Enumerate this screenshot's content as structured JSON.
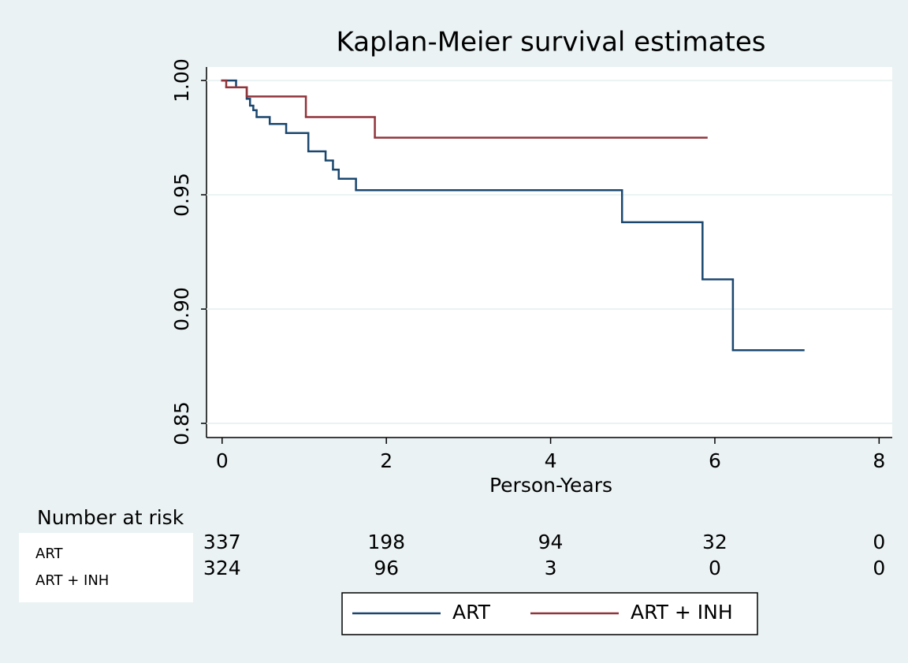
{
  "chart_data": {
    "type": "step",
    "title": "Kaplan-Meier survival estimates",
    "x_label": "Person-Years",
    "xlim": [
      -0.19,
      8.16
    ],
    "xticks": [
      0,
      2,
      4,
      6,
      8
    ],
    "ylim": [
      0.8438,
      1.0059
    ],
    "yticks": [
      {
        "value": 1.0,
        "label": "1.00"
      },
      0.95,
      {
        "value": 0.9,
        "label": "0.90"
      },
      0.85
    ],
    "grid": true,
    "series": [
      {
        "name": "ART",
        "color": "#1a476f",
        "x": [
          0,
          0.17,
          0.3,
          0.34,
          0.38,
          0.42,
          0.58,
          0.78,
          1.05,
          1.26,
          1.35,
          1.42,
          1.63,
          4.87,
          5.85,
          6.22,
          7.08
        ],
        "values": [
          1.0,
          0.997,
          0.992,
          0.989,
          0.987,
          0.984,
          0.981,
          0.977,
          0.969,
          0.965,
          0.961,
          0.957,
          0.952,
          0.938,
          0.913,
          0.882,
          0.882
        ]
      },
      {
        "name": "ART + INH",
        "color": "#90353b",
        "x": [
          0,
          0.05,
          0.3,
          1.02,
          1.86,
          5.9
        ],
        "values": [
          1.0,
          0.997,
          0.993,
          0.984,
          0.975,
          0.975
        ]
      }
    ]
  },
  "risk_table": {
    "title": "Number at risk",
    "rows": [
      {
        "label": "ART",
        "counts": [
          337,
          198,
          94,
          32,
          0
        ]
      },
      {
        "label": "ART + INH",
        "counts": [
          324,
          96,
          3,
          0,
          0
        ]
      }
    ]
  }
}
